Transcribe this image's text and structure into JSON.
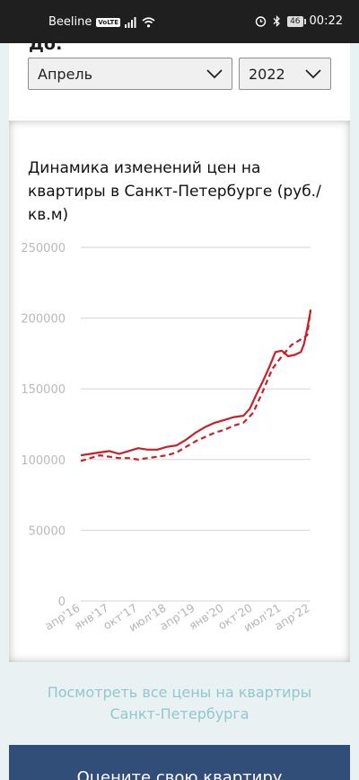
{
  "status_bar": {
    "carrier": "Beeline",
    "volte": "VoLTE",
    "battery": "46",
    "time": "00:22",
    "icons": [
      "signal-icon",
      "wifi-icon",
      "alarm-icon",
      "bluetooth-icon",
      "battery-icon"
    ]
  },
  "filter": {
    "label": "До:",
    "month": "Апрель",
    "year": "2022"
  },
  "chart_data": {
    "type": "line",
    "title": "Динамика изменений цен на квартиры в Санкт-Петербурге (руб./кв.м)",
    "xlabel": "",
    "ylabel": "",
    "ylim": [
      0,
      250000
    ],
    "y_ticks": [
      0,
      50000,
      100000,
      150000,
      200000,
      250000
    ],
    "y_tick_labels": [
      "0",
      "50000",
      "100000",
      "150000",
      "200000",
      "250000"
    ],
    "x_tick_labels": [
      "апр'16",
      "янв'17",
      "окт'17",
      "июл'18",
      "апр'19",
      "янв'20",
      "окт'20",
      "июл'21",
      "апр'22"
    ],
    "x_range": [
      "2016-04",
      "2022-04"
    ],
    "grid": "horizontal",
    "legend": "none",
    "series": [
      {
        "style": "solid",
        "color": "#c8202a",
        "points": [
          [
            "2016-04",
            103000
          ],
          [
            "2016-07",
            104000
          ],
          [
            "2016-10",
            105000
          ],
          [
            "2017-01",
            106000
          ],
          [
            "2017-04",
            104000
          ],
          [
            "2017-07",
            106000
          ],
          [
            "2017-10",
            108000
          ],
          [
            "2018-01",
            107000
          ],
          [
            "2018-04",
            107000
          ],
          [
            "2018-07",
            109000
          ],
          [
            "2018-10",
            110000
          ],
          [
            "2019-01",
            114000
          ],
          [
            "2019-04",
            119000
          ],
          [
            "2019-07",
            123000
          ],
          [
            "2019-10",
            126000
          ],
          [
            "2020-01",
            128000
          ],
          [
            "2020-04",
            130000
          ],
          [
            "2020-07",
            131000
          ],
          [
            "2020-09",
            136000
          ],
          [
            "2020-11",
            146000
          ],
          [
            "2021-01",
            155000
          ],
          [
            "2021-03",
            165000
          ],
          [
            "2021-05",
            176000
          ],
          [
            "2021-07",
            177000
          ],
          [
            "2021-09",
            173000
          ],
          [
            "2021-11",
            174000
          ],
          [
            "2022-01",
            176000
          ],
          [
            "2022-02",
            182000
          ],
          [
            "2022-03",
            193000
          ],
          [
            "2022-04",
            205000
          ]
        ]
      },
      {
        "style": "dashed",
        "color": "#c8202a",
        "points": [
          [
            "2016-04",
            99000
          ],
          [
            "2016-07",
            101000
          ],
          [
            "2016-10",
            103000
          ],
          [
            "2017-01",
            102000
          ],
          [
            "2017-04",
            101000
          ],
          [
            "2017-07",
            101000
          ],
          [
            "2017-10",
            100000
          ],
          [
            "2018-01",
            101000
          ],
          [
            "2018-04",
            102000
          ],
          [
            "2018-07",
            103000
          ],
          [
            "2018-10",
            105000
          ],
          [
            "2019-01",
            109000
          ],
          [
            "2019-04",
            113000
          ],
          [
            "2019-07",
            116000
          ],
          [
            "2019-10",
            119000
          ],
          [
            "2020-01",
            121000
          ],
          [
            "2020-04",
            124000
          ],
          [
            "2020-07",
            126000
          ],
          [
            "2020-10",
            133000
          ],
          [
            "2021-01",
            148000
          ],
          [
            "2021-04",
            164000
          ],
          [
            "2021-07",
            173000
          ],
          [
            "2021-10",
            181000
          ],
          [
            "2022-01",
            185000
          ],
          [
            "2022-03",
            188000
          ],
          [
            "2022-04",
            206000
          ]
        ]
      }
    ]
  },
  "link": {
    "line1": "Посмотреть все цены на квартиры",
    "line2": "Санкт-Петербурга"
  },
  "cta": {
    "label": "Оцените свою квартиру"
  }
}
